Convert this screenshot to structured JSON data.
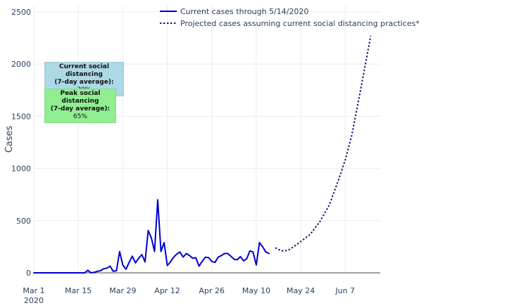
{
  "chart_data": {
    "type": "line",
    "xlabel": "",
    "ylabel": "Cases",
    "ylim": [
      0,
      2560
    ],
    "xlim": [
      "2020-03-01",
      "2020-06-18"
    ],
    "yticks": [
      0,
      500,
      1000,
      1500,
      2000,
      2500
    ],
    "xticks": [
      {
        "date": "2020-03-01",
        "label": "Mar 1",
        "sublabel": "2020"
      },
      {
        "date": "2020-03-15",
        "label": "Mar 15"
      },
      {
        "date": "2020-03-29",
        "label": "Mar 29"
      },
      {
        "date": "2020-04-12",
        "label": "Apr 12"
      },
      {
        "date": "2020-04-26",
        "label": "Apr 26"
      },
      {
        "date": "2020-05-10",
        "label": "May 10"
      },
      {
        "date": "2020-05-24",
        "label": "May 24"
      },
      {
        "date": "2020-06-07",
        "label": "Jun 7"
      }
    ],
    "grid": true,
    "legend_position": "top-right",
    "series": [
      {
        "name": "Current cases through 5/14/2020",
        "style": "solid",
        "color": "#0000cd",
        "x": [
          "2020-03-01",
          "2020-03-02",
          "2020-03-03",
          "2020-03-04",
          "2020-03-05",
          "2020-03-06",
          "2020-03-07",
          "2020-03-08",
          "2020-03-09",
          "2020-03-10",
          "2020-03-11",
          "2020-03-12",
          "2020-03-13",
          "2020-03-14",
          "2020-03-15",
          "2020-03-16",
          "2020-03-17",
          "2020-03-18",
          "2020-03-19",
          "2020-03-20",
          "2020-03-21",
          "2020-03-22",
          "2020-03-23",
          "2020-03-24",
          "2020-03-25",
          "2020-03-26",
          "2020-03-27",
          "2020-03-28",
          "2020-03-29",
          "2020-03-30",
          "2020-03-31",
          "2020-04-01",
          "2020-04-02",
          "2020-04-03",
          "2020-04-04",
          "2020-04-05",
          "2020-04-06",
          "2020-04-07",
          "2020-04-08",
          "2020-04-09",
          "2020-04-10",
          "2020-04-11",
          "2020-04-12",
          "2020-04-13",
          "2020-04-14",
          "2020-04-15",
          "2020-04-16",
          "2020-04-17",
          "2020-04-18",
          "2020-04-19",
          "2020-04-20",
          "2020-04-21",
          "2020-04-22",
          "2020-04-23",
          "2020-04-24",
          "2020-04-25",
          "2020-04-26",
          "2020-04-27",
          "2020-04-28",
          "2020-04-29",
          "2020-04-30",
          "2020-05-01",
          "2020-05-02",
          "2020-05-03",
          "2020-05-04",
          "2020-05-05",
          "2020-05-06",
          "2020-05-07",
          "2020-05-08",
          "2020-05-09",
          "2020-05-10",
          "2020-05-11",
          "2020-05-12",
          "2020-05-13",
          "2020-05-14"
        ],
        "values": [
          0,
          0,
          0,
          0,
          0,
          0,
          0,
          0,
          0,
          0,
          0,
          0,
          0,
          0,
          0,
          0,
          0,
          25,
          0,
          5,
          15,
          20,
          40,
          45,
          65,
          15,
          20,
          205,
          75,
          35,
          100,
          160,
          95,
          140,
          175,
          105,
          405,
          335,
          205,
          700,
          205,
          290,
          70,
          105,
          150,
          180,
          200,
          150,
          185,
          165,
          140,
          145,
          65,
          110,
          150,
          145,
          110,
          100,
          150,
          165,
          185,
          185,
          160,
          130,
          125,
          155,
          115,
          135,
          210,
          200,
          75,
          290,
          250,
          200,
          185
        ]
      },
      {
        "name": "Projected cases assuming current social distancing practices*",
        "style": "dotted",
        "color": "#1a1a7a",
        "x": [
          "2020-05-16",
          "2020-05-18",
          "2020-05-20",
          "2020-05-22",
          "2020-05-24",
          "2020-05-27",
          "2020-05-30",
          "2020-06-02",
          "2020-06-05",
          "2020-06-07",
          "2020-06-09",
          "2020-06-11",
          "2020-06-13",
          "2020-06-15"
        ],
        "values": [
          240,
          210,
          215,
          255,
          300,
          370,
          490,
          650,
          900,
          1080,
          1310,
          1620,
          1940,
          2270
        ]
      }
    ],
    "annotations": [
      {
        "lines": [
          "Current social distancing",
          "(7-day average):"
        ],
        "value": "39%",
        "color": "#add8e6"
      },
      {
        "lines": [
          "Peak social distancing",
          "(7-day average):"
        ],
        "value": "65%",
        "color": "#90ee90"
      }
    ]
  }
}
